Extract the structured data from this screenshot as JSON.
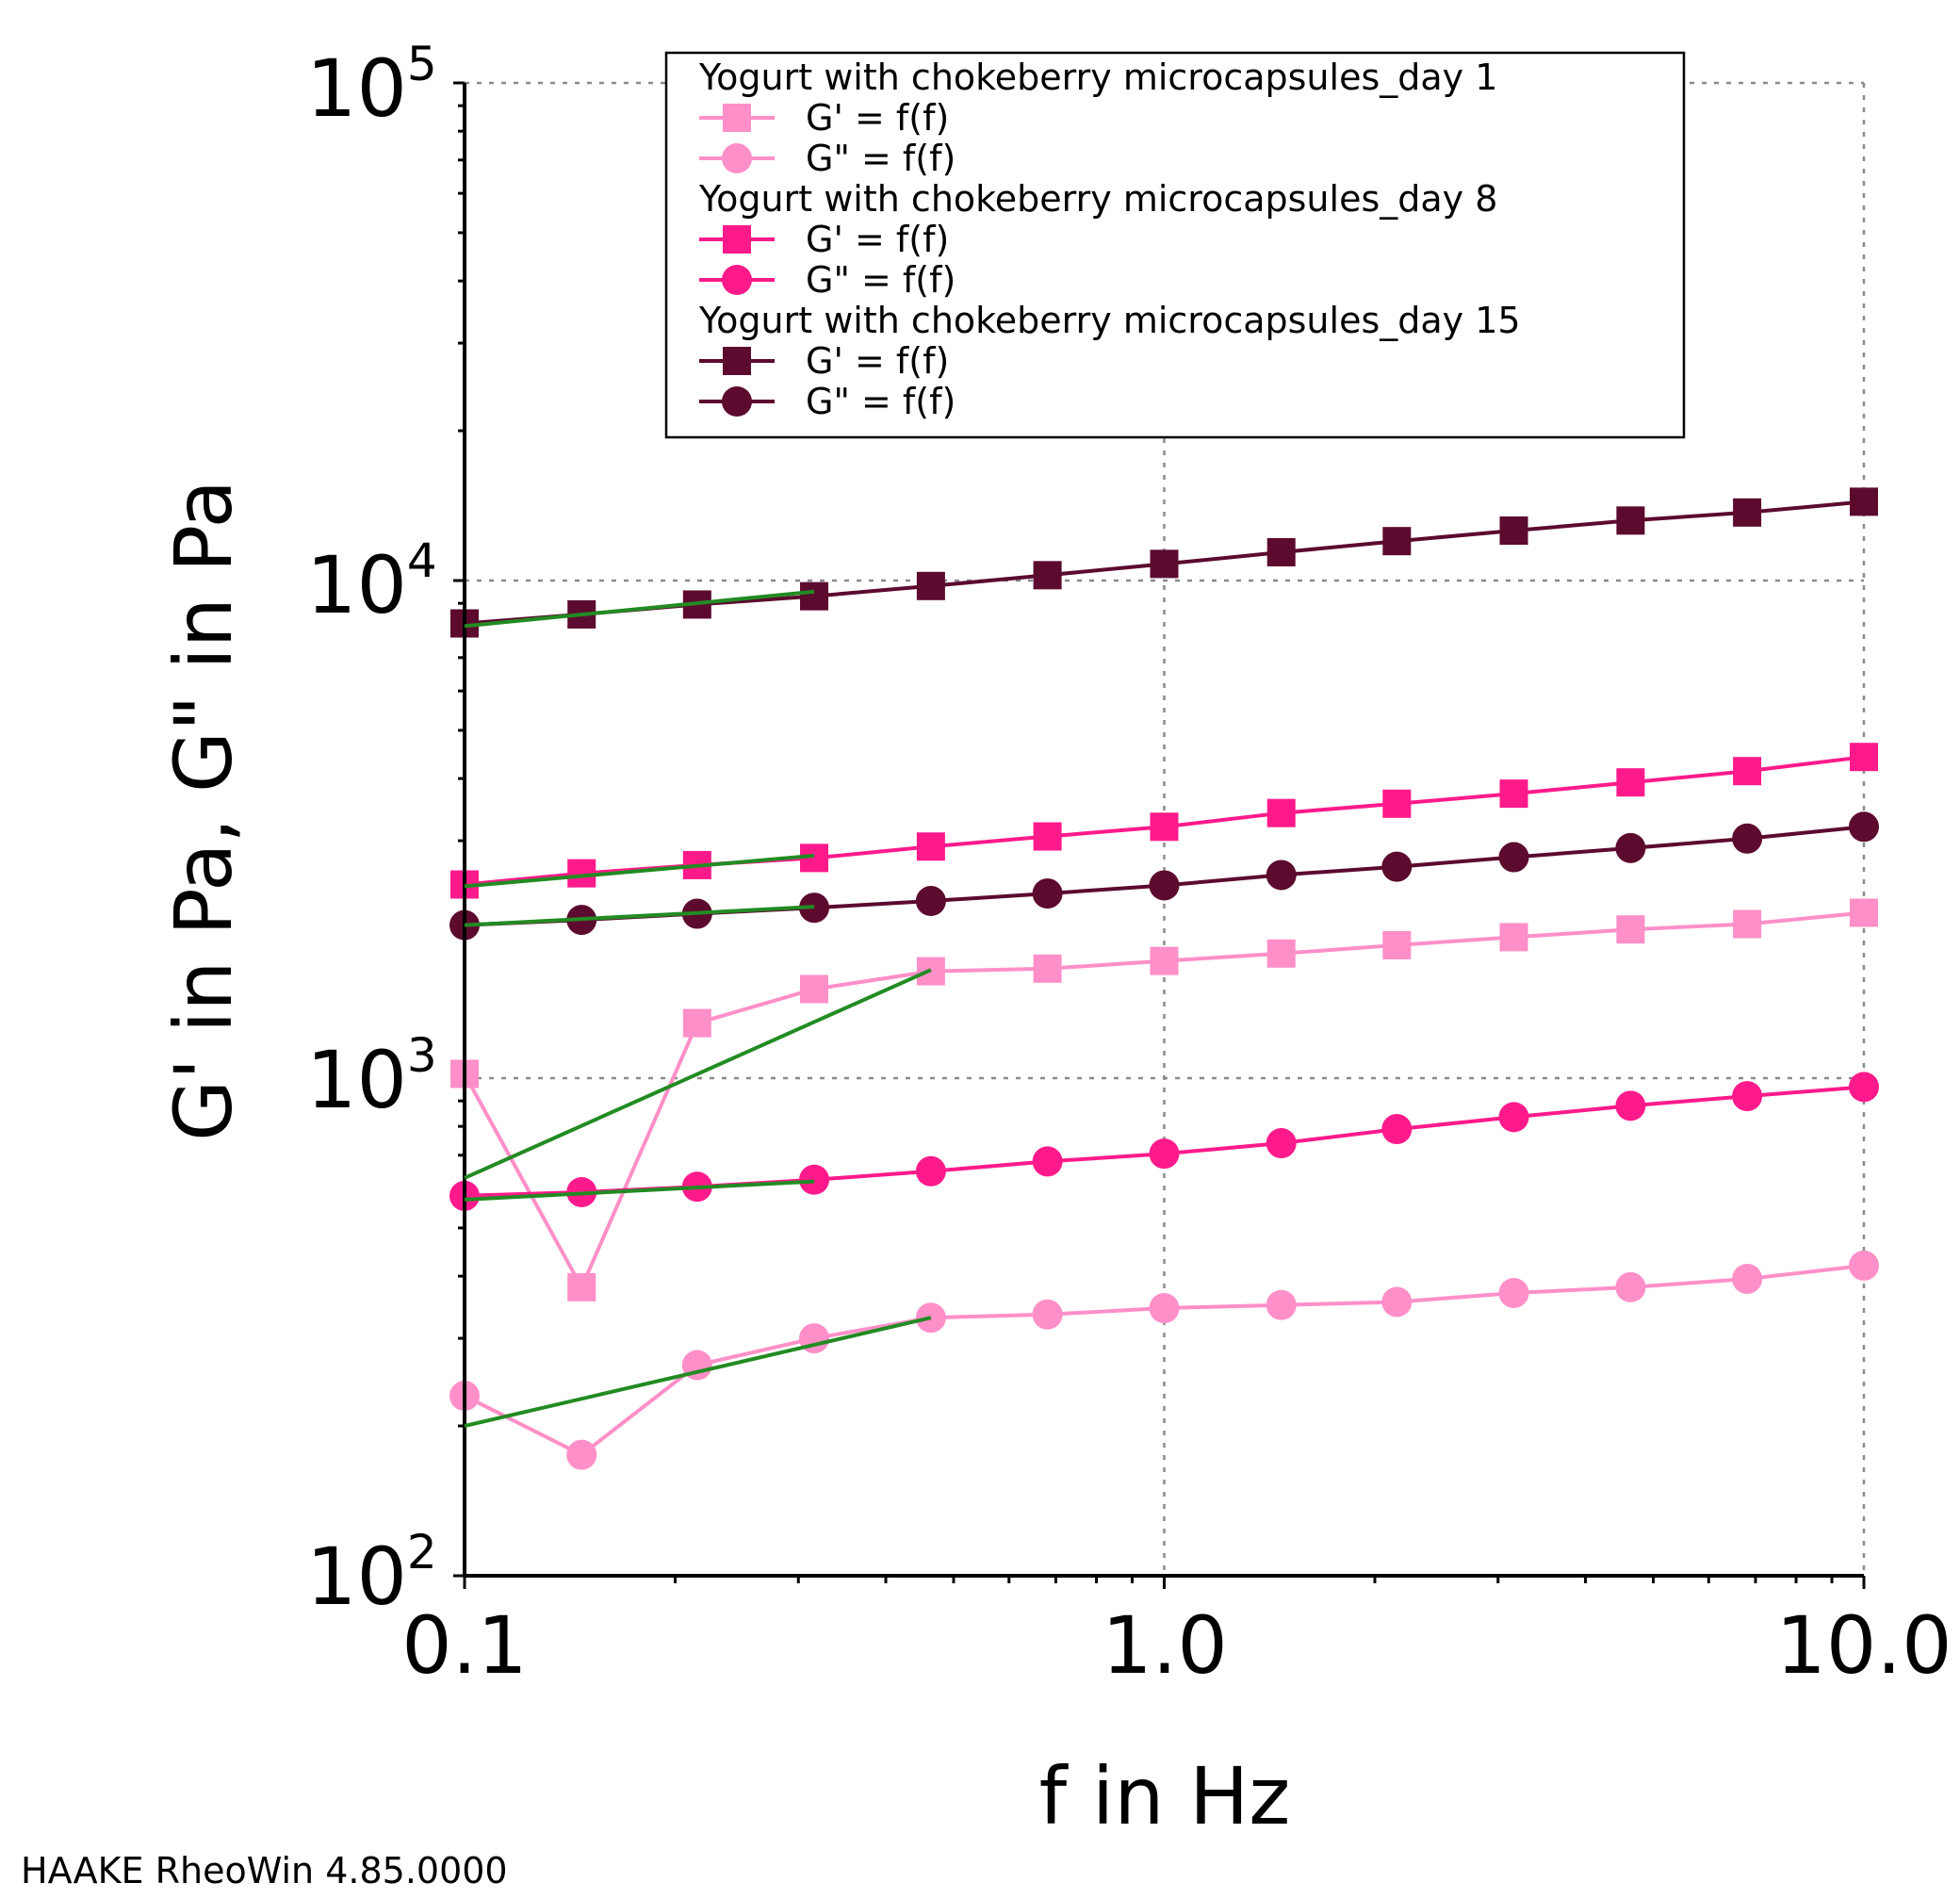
{
  "chart_data": {
    "type": "line",
    "xlabel": "f in Hz",
    "ylabel": "G' in Pa, G\" in Pa",
    "x_scale": "log",
    "y_scale": "log",
    "xlim": [
      0.1,
      10.0
    ],
    "ylim": [
      100,
      100000
    ],
    "x_tick_labels": [
      "0.1",
      "1.0",
      "10.0"
    ],
    "y_tick_labels": [
      {
        "base": "10",
        "exp": "2"
      },
      {
        "base": "10",
        "exp": "3"
      },
      {
        "base": "10",
        "exp": "4"
      },
      {
        "base": "10",
        "exp": "5"
      }
    ],
    "grid": true,
    "legend_position": "top",
    "x": [
      0.1,
      0.147,
      0.215,
      0.316,
      0.464,
      0.681,
      1.0,
      1.47,
      2.15,
      3.16,
      4.64,
      6.81,
      10.0
    ],
    "groups": [
      {
        "name": "Yogurt with chokeberry microcapsules_day 1",
        "color": "#ff8fc8",
        "series": [
          {
            "name": "G' = f(f)",
            "marker": "square",
            "values": [
              1020,
              380,
              1290,
              1510,
              1640,
              1660,
              1720,
              1780,
              1850,
              1920,
              1990,
              2040,
              2150
            ]
          },
          {
            "name": "G\" = f(f)",
            "marker": "circle",
            "values": [
              230,
              175,
              265,
              300,
              330,
              335,
              345,
              350,
              355,
              370,
              380,
              395,
              420
            ]
          }
        ]
      },
      {
        "name": "Yogurt with chokeberry microcapsules_day 8",
        "color": "#ff1a8c",
        "series": [
          {
            "name": "G' = f(f)",
            "marker": "square",
            "values": [
              2450,
              2580,
              2680,
              2770,
              2920,
              3060,
              3200,
              3410,
              3560,
              3730,
              3930,
              4140,
              4420
            ]
          },
          {
            "name": "G\" = f(f)",
            "marker": "circle",
            "values": [
              580,
              590,
              605,
              625,
              650,
              680,
              705,
              740,
              790,
              835,
              880,
              920,
              960
            ]
          }
        ]
      },
      {
        "name": "Yogurt with chokeberry microcapsules_day 15",
        "color": "#5c0a2e",
        "series": [
          {
            "name": "G' = f(f)",
            "marker": "square",
            "values": [
              8200,
              8550,
              8950,
              9300,
              9750,
              10250,
              10800,
              11400,
              12000,
              12600,
              13200,
              13700,
              14400
            ]
          },
          {
            "name": "G\" = f(f)",
            "marker": "circle",
            "values": [
              2030,
              2080,
              2140,
              2200,
              2270,
              2350,
              2440,
              2560,
              2660,
              2780,
              2900,
              3030,
              3200
            ]
          }
        ]
      }
    ],
    "fit_color": "#228b22",
    "fit_lines": [
      {
        "x": [
          0.1,
          0.316
        ],
        "y": [
          8100,
          9500
        ]
      },
      {
        "x": [
          0.1,
          0.316
        ],
        "y": [
          2430,
          2800
        ]
      },
      {
        "x": [
          0.1,
          0.316
        ],
        "y": [
          2030,
          2210
        ]
      },
      {
        "x": [
          0.1,
          0.464
        ],
        "y": [
          630,
          1650
        ]
      },
      {
        "x": [
          0.1,
          0.316
        ],
        "y": [
          570,
          620
        ]
      },
      {
        "x": [
          0.1,
          0.464
        ],
        "y": [
          200,
          330
        ]
      }
    ]
  },
  "footer": {
    "software": "HAAKE RheoWin 4.85.0000"
  }
}
